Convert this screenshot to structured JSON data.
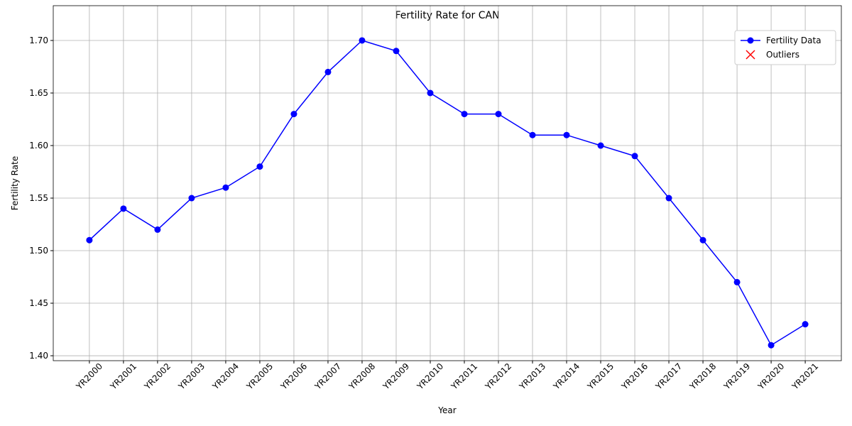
{
  "chart_data": {
    "type": "line",
    "title": "Fertility Rate for CAN",
    "xlabel": "Year",
    "ylabel": "Fertility Rate",
    "categories": [
      "YR2000",
      "YR2001",
      "YR2002",
      "YR2003",
      "YR2004",
      "YR2005",
      "YR2006",
      "YR2007",
      "YR2008",
      "YR2009",
      "YR2010",
      "YR2011",
      "YR2012",
      "YR2013",
      "YR2014",
      "YR2015",
      "YR2016",
      "YR2017",
      "YR2018",
      "YR2019",
      "YR2020",
      "YR2021"
    ],
    "series": [
      {
        "name": "Fertility Data",
        "color": "#0000ff",
        "values": [
          1.51,
          1.54,
          1.52,
          1.55,
          1.56,
          1.58,
          1.63,
          1.67,
          1.7,
          1.69,
          1.65,
          1.63,
          1.63,
          1.61,
          1.61,
          1.6,
          1.59,
          1.55,
          1.51,
          1.47,
          1.41,
          1.43
        ]
      },
      {
        "name": "Outliers",
        "color": "#ff0000",
        "values": [
          null,
          null,
          null,
          null,
          null,
          null,
          null,
          null,
          null,
          null,
          null,
          null,
          null,
          null,
          null,
          null,
          null,
          null,
          null,
          null,
          null,
          null
        ]
      }
    ],
    "ylim": [
      1.3953,
      1.7331
    ],
    "yticks": [
      {
        "value": 1.4,
        "label": "1.40"
      },
      1.45,
      {
        "value": 1.5,
        "label": "1.50"
      },
      1.55,
      {
        "value": 1.6,
        "label": "1.60"
      },
      1.65,
      {
        "value": 1.7,
        "label": "1.70"
      }
    ],
    "grid": true,
    "legend": "upper right"
  }
}
